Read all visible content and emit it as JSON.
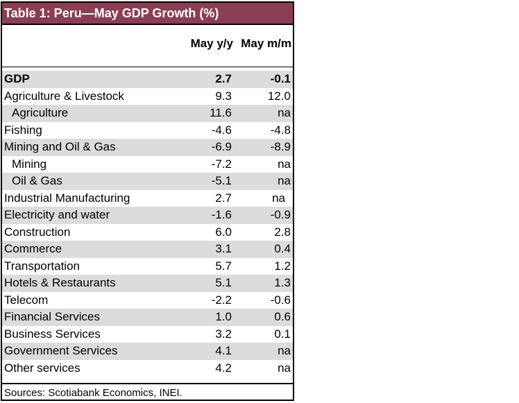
{
  "table": {
    "title": "Table 1: Peru—May GDP Growth (%)",
    "col1_header": "May y/y",
    "col2_header": "May m/m",
    "rows": [
      {
        "label": "GDP",
        "yy": "2.7",
        "mm": "-0.1"
      },
      {
        "label": "Agriculture & Livestock",
        "yy": "9.3",
        "mm": "12.0"
      },
      {
        "label": "Agriculture",
        "yy": "11.6",
        "mm": "na"
      },
      {
        "label": "Fishing",
        "yy": "-4.6",
        "mm": "-4.8"
      },
      {
        "label": "Mining and Oil & Gas",
        "yy": "-6.9",
        "mm": "-8.9"
      },
      {
        "label": "Mining",
        "yy": "-7.2",
        "mm": "na"
      },
      {
        "label": "Oil & Gas",
        "yy": "-5.1",
        "mm": "na"
      },
      {
        "label": "Industrial Manufacturing",
        "yy": "2.7",
        "mm": "na"
      },
      {
        "label": "Electricity and water",
        "yy": "-1.6",
        "mm": "-0.9"
      },
      {
        "label": "Construction",
        "yy": "6.0",
        "mm": "2.8"
      },
      {
        "label": "Commerce",
        "yy": "3.1",
        "mm": "0.4"
      },
      {
        "label": "Transportation",
        "yy": "5.7",
        "mm": "1.2"
      },
      {
        "label": "Hotels & Restaurants",
        "yy": "5.1",
        "mm": "1.3"
      },
      {
        "label": "Telecom",
        "yy": "-2.2",
        "mm": "-0.6"
      },
      {
        "label": "Financial Services",
        "yy": "1.0",
        "mm": "0.6"
      },
      {
        "label": "Business Services",
        "yy": "3.2",
        "mm": "0.1"
      },
      {
        "label": "Government Services",
        "yy": "4.1",
        "mm": "na"
      },
      {
        "label": "Other services",
        "yy": "4.2",
        "mm": "na"
      }
    ],
    "source": "Sources: Scotiabank Economics, INEI.",
    "colors": {
      "title_bg": "#8b3e53",
      "title_text": "#ffffff",
      "row_shade": "#dcdcdc"
    }
  }
}
